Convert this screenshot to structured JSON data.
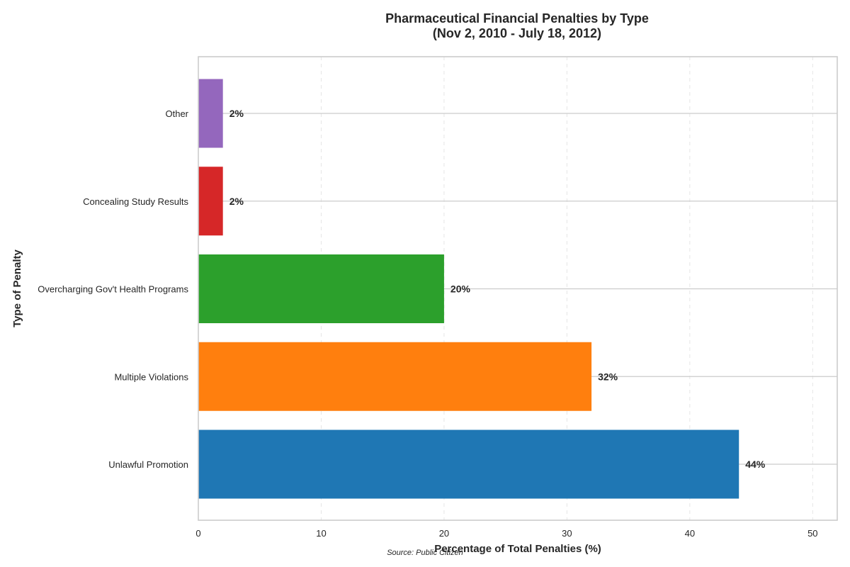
{
  "chart_data": {
    "type": "bar",
    "orientation": "horizontal",
    "title": "Pharmaceutical Financial Penalties by Type",
    "subtitle": "(Nov 2, 2010 - July 18, 2012)",
    "xlabel": "Percentage of Total Penalties (%)",
    "ylabel": "Type of Penalty",
    "categories": [
      "Unlawful Promotion",
      "Multiple Violations",
      "Overcharging Gov't Health Programs",
      "Concealing Study Results",
      "Other"
    ],
    "values": [
      44,
      32,
      20,
      2,
      2
    ],
    "value_labels": [
      "44%",
      "32%",
      "20%",
      "2%",
      "2%"
    ],
    "colors": [
      "#1f77b4",
      "#ff7f0e",
      "#2ca02c",
      "#d62728",
      "#9467bd"
    ],
    "xlim": [
      0,
      52
    ],
    "xticks": [
      0,
      10,
      20,
      30,
      40,
      50
    ],
    "xtick_labels": [
      "0",
      "10",
      "20",
      "30",
      "40",
      "50"
    ],
    "grid": "x dashed",
    "legend": "none",
    "source": "Source: Public Citizen"
  }
}
